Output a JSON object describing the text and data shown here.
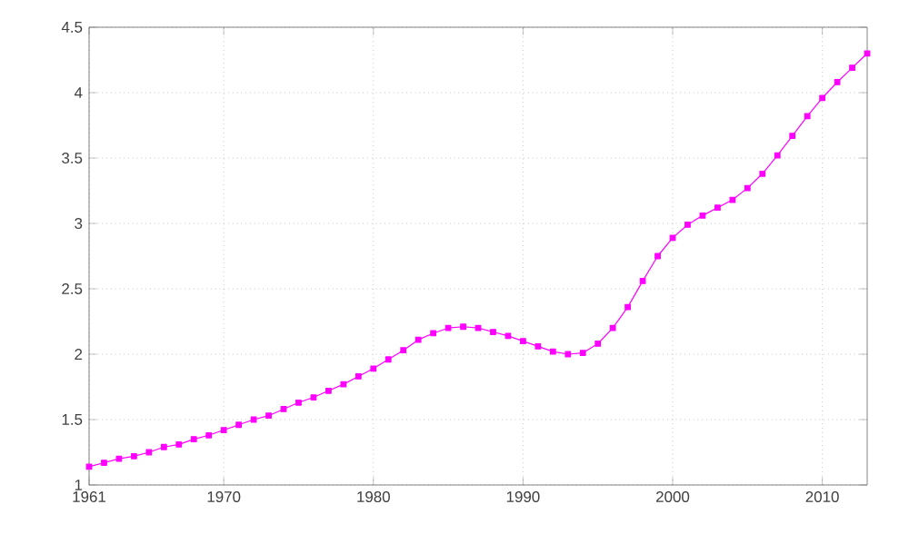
{
  "chart_data": {
    "type": "line",
    "x": [
      1961,
      1962,
      1963,
      1964,
      1965,
      1966,
      1967,
      1968,
      1969,
      1970,
      1971,
      1972,
      1973,
      1974,
      1975,
      1976,
      1977,
      1978,
      1979,
      1980,
      1981,
      1982,
      1983,
      1984,
      1985,
      1986,
      1987,
      1988,
      1989,
      1990,
      1991,
      1992,
      1993,
      1994,
      1995,
      1996,
      1997,
      1998,
      1999,
      2000,
      2001,
      2002,
      2003,
      2004,
      2005,
      2006,
      2007,
      2008,
      2009,
      2010,
      2011,
      2012,
      2013
    ],
    "values": [
      1.14,
      1.17,
      1.2,
      1.22,
      1.25,
      1.29,
      1.31,
      1.35,
      1.38,
      1.42,
      1.46,
      1.5,
      1.53,
      1.58,
      1.63,
      1.67,
      1.72,
      1.77,
      1.83,
      1.89,
      1.96,
      2.03,
      2.11,
      2.16,
      2.2,
      2.21,
      2.2,
      2.17,
      2.14,
      2.1,
      2.06,
      2.02,
      2.0,
      2.01,
      2.08,
      2.2,
      2.36,
      2.56,
      2.75,
      2.89,
      2.99,
      3.06,
      3.12,
      3.18,
      3.27,
      3.38,
      3.52,
      3.67,
      3.82,
      3.96,
      4.08,
      4.19,
      4.3
    ],
    "color": "#ff00ff",
    "marker": "square",
    "line_style": "solid",
    "grid": true,
    "xlim": [
      1961,
      2013
    ],
    "xticks": [
      1961,
      1970,
      1980,
      1990,
      2000,
      2010
    ],
    "ylim": [
      1,
      4.5
    ],
    "yticks": [
      1,
      1.5,
      2,
      2.5,
      3,
      3.5,
      4,
      4.5
    ]
  }
}
